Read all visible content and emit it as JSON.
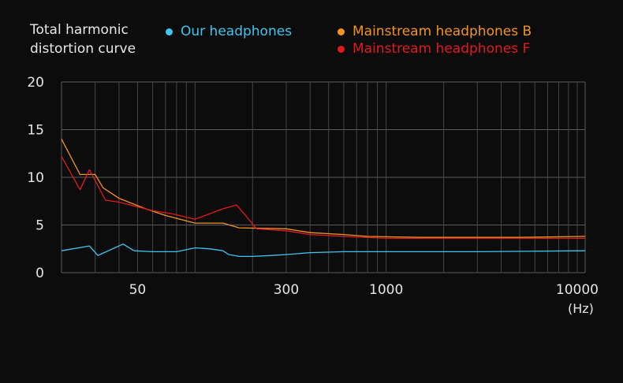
{
  "chart_data": {
    "type": "line",
    "title": "Total harmonic distortion curve",
    "xlabel": "(Hz)",
    "ylabel": "",
    "xscale": "log",
    "xlim": [
      20,
      11000
    ],
    "ylim": [
      0,
      20
    ],
    "yticks": [
      0,
      5,
      10,
      15,
      20
    ],
    "xticks": [
      50,
      300,
      1000,
      10000
    ],
    "grid": true,
    "legend_position": "top",
    "series": [
      {
        "name": "Our headphones",
        "color": "#3fc6f0",
        "points": [
          [
            20,
            2.3
          ],
          [
            28,
            2.8
          ],
          [
            31,
            1.8
          ],
          [
            42,
            3.0
          ],
          [
            48,
            2.3
          ],
          [
            60,
            2.2
          ],
          [
            80,
            2.2
          ],
          [
            100,
            2.6
          ],
          [
            120,
            2.5
          ],
          [
            140,
            2.3
          ],
          [
            150,
            1.9
          ],
          [
            170,
            1.7
          ],
          [
            200,
            1.7
          ],
          [
            250,
            1.8
          ],
          [
            300,
            1.9
          ],
          [
            400,
            2.1
          ],
          [
            600,
            2.2
          ],
          [
            1000,
            2.2
          ],
          [
            3000,
            2.2
          ],
          [
            11000,
            2.3
          ]
        ]
      },
      {
        "name": "Mainstream headphones B",
        "color": "#f39321",
        "points": [
          [
            20,
            14.0
          ],
          [
            25,
            10.3
          ],
          [
            30,
            10.3
          ],
          [
            33,
            8.9
          ],
          [
            40,
            7.8
          ],
          [
            55,
            6.7
          ],
          [
            70,
            6.0
          ],
          [
            100,
            5.2
          ],
          [
            140,
            5.2
          ],
          [
            170,
            4.7
          ],
          [
            300,
            4.6
          ],
          [
            400,
            4.2
          ],
          [
            600,
            4.0
          ],
          [
            800,
            3.8
          ],
          [
            1500,
            3.7
          ],
          [
            5000,
            3.7
          ],
          [
            11000,
            3.8
          ]
        ]
      },
      {
        "name": "Mainstream headphones F",
        "color": "#e21a1f",
        "points": [
          [
            20,
            12.2
          ],
          [
            25,
            8.7
          ],
          [
            28,
            10.8
          ],
          [
            34,
            7.6
          ],
          [
            40,
            7.4
          ],
          [
            60,
            6.5
          ],
          [
            75,
            6.2
          ],
          [
            100,
            5.6
          ],
          [
            140,
            6.7
          ],
          [
            165,
            7.1
          ],
          [
            210,
            4.6
          ],
          [
            300,
            4.4
          ],
          [
            400,
            4.0
          ],
          [
            600,
            3.8
          ],
          [
            1000,
            3.6
          ],
          [
            5000,
            3.6
          ],
          [
            11000,
            3.6
          ]
        ]
      }
    ]
  }
}
